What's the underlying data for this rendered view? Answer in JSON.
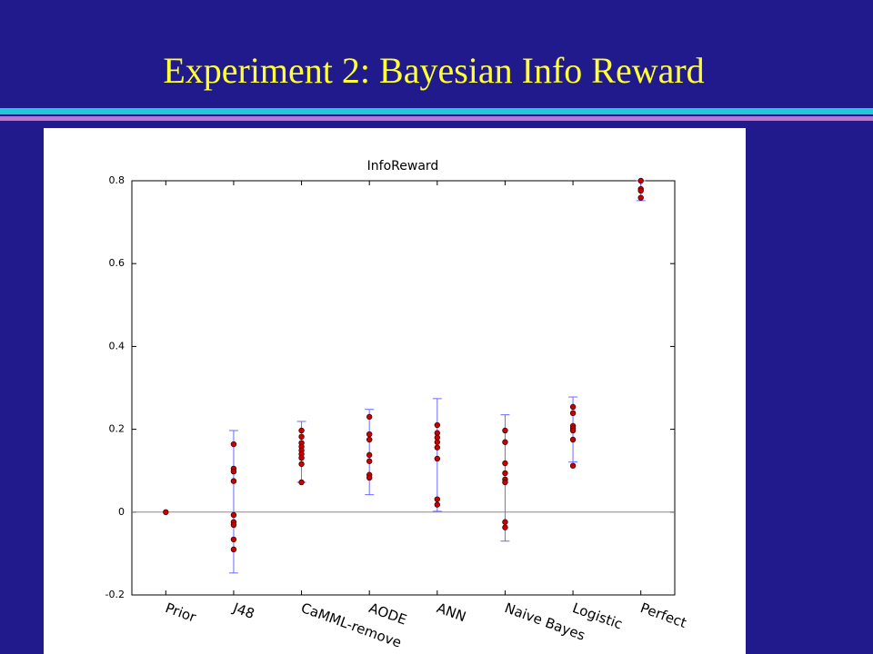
{
  "slide": {
    "title": "Experiment 2: Bayesian Info Reward"
  },
  "chart_data": {
    "type": "scatter",
    "title": "InfoReward",
    "categories": [
      "Prior",
      "J48",
      "CaMML-remove",
      "AODE",
      "ANN",
      "Naive Bayes",
      "Logistic",
      "Perfect"
    ],
    "points": [
      [
        0
      ],
      [
        0.164,
        0.105,
        0.098,
        0.075,
        -0.007,
        -0.024,
        -0.031,
        -0.066,
        -0.09
      ],
      [
        0.197,
        0.182,
        0.167,
        0.158,
        0.149,
        0.14,
        0.131,
        0.116,
        0.072
      ],
      [
        0.23,
        0.188,
        0.175,
        0.138,
        0.123,
        0.09,
        0.083
      ],
      [
        0.21,
        0.191,
        0.18,
        0.169,
        0.156,
        0.129,
        0.031,
        0.018
      ],
      [
        0.197,
        0.169,
        0.118,
        0.094,
        0.079,
        0.072,
        -0.024,
        -0.037
      ],
      [
        0.254,
        0.239,
        0.208,
        0.202,
        0.197,
        0.175,
        0.112
      ],
      [
        0.8,
        0.78,
        0.776,
        0.759
      ]
    ],
    "error_bars": [
      null,
      [
        -0.147,
        0.197
      ],
      [
        0.072,
        0.219
      ],
      [
        0.042,
        0.248
      ],
      [
        0.002,
        0.274
      ],
      [
        -0.07,
        0.235
      ],
      [
        0.121,
        0.278
      ],
      [
        0.752,
        0.8
      ]
    ],
    "point_color": "#cc0000",
    "error_color": "#6b6bff",
    "hline": 0,
    "ylim": [
      -0.2,
      0.8
    ],
    "yticks": [
      0.8,
      0.6,
      0.4,
      0.2,
      0,
      -0.2
    ]
  }
}
